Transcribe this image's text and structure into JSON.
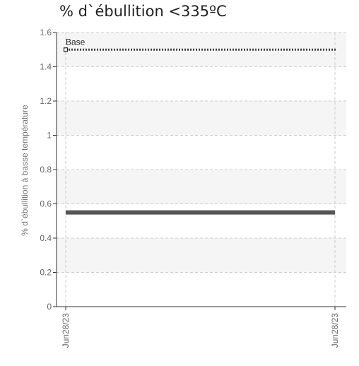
{
  "chart_data": {
    "type": "line",
    "title": "% d`ébullition <335ºC",
    "xlabel": "",
    "ylabel": "% d`ébullition à basse température",
    "ylim": [
      0,
      1.6
    ],
    "yticks": [
      "0",
      "0.2",
      "0.4",
      "0.6",
      "0.8",
      "1",
      "1.2",
      "1.4",
      "1.6"
    ],
    "x": [
      "Jun28/23",
      "Jun28/23"
    ],
    "grid": true,
    "legend": "none",
    "series": [
      {
        "values": [
          0.55,
          0.55
        ],
        "color": "#555555",
        "style": "solid"
      }
    ],
    "reference_lines": [
      {
        "name": "Base",
        "value": 1.5,
        "color": "#444444",
        "style": "dotted"
      }
    ]
  }
}
